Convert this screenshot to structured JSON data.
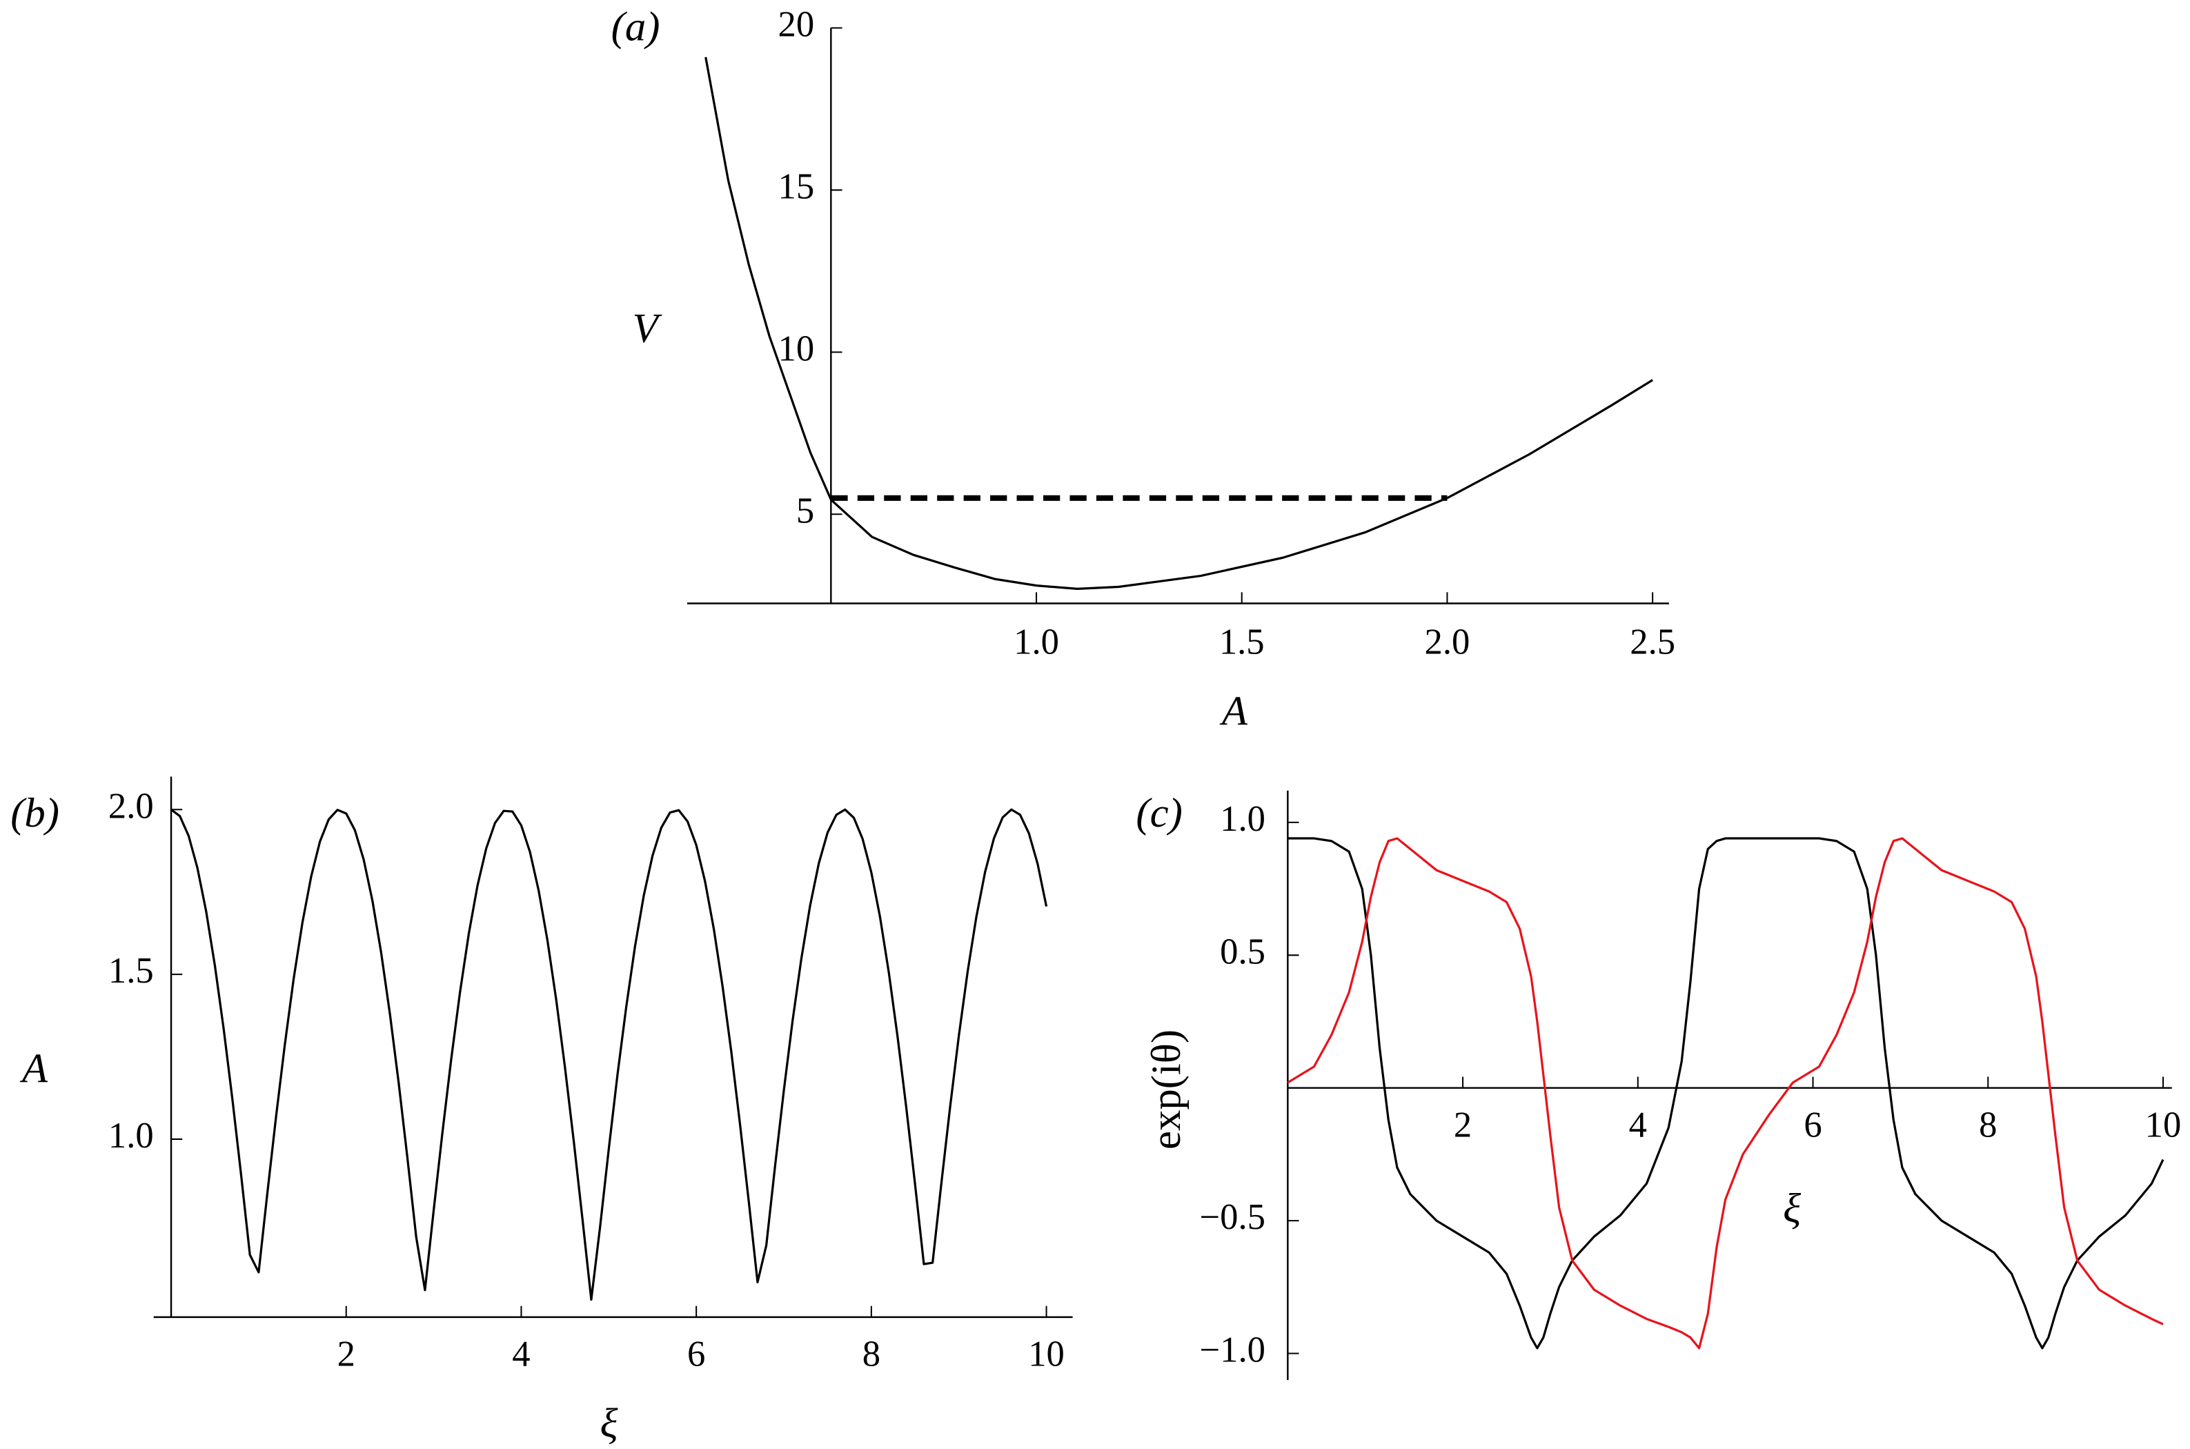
{
  "chart_data": [
    {
      "type": "line",
      "panel_label": "(a)",
      "xlabel": "A",
      "ylabel": "V",
      "xlim": [
        0.15,
        2.54
      ],
      "ylim": [
        2.25,
        20
      ],
      "axes_origin": [
        0.5,
        2.25
      ],
      "xticks": [
        {
          "value": 1.0,
          "label": "1.0"
        },
        {
          "value": 1.5,
          "label": "1.5"
        },
        {
          "value": 2.0,
          "label": "2.0"
        },
        {
          "value": 2.5,
          "label": "2.5"
        }
      ],
      "yticks": [
        5,
        10,
        15,
        20
      ],
      "x": [
        0.195,
        0.25,
        0.3,
        0.35,
        0.4,
        0.45,
        0.5,
        0.6,
        0.7,
        0.8,
        0.9,
        1.0,
        1.1,
        1.2,
        1.4,
        1.6,
        1.8,
        2.0,
        2.2,
        2.4,
        2.5
      ],
      "series": [
        {
          "color": "#000000",
          "values": [
            19.1,
            15.3,
            12.7,
            10.5,
            8.7,
            6.9,
            5.45,
            4.3,
            3.75,
            3.36,
            3.0,
            2.8,
            2.7,
            2.76,
            3.1,
            3.66,
            4.44,
            5.5,
            6.85,
            8.36,
            9.14
          ]
        },
        {
          "color": "#000000",
          "dashed": true,
          "x": [
            0.5,
            2.0
          ],
          "values": [
            5.5,
            5.5
          ]
        }
      ]
    },
    {
      "type": "line",
      "panel_label": "(b)",
      "xlabel": "ξ",
      "ylabel": "A",
      "xlim": [
        -0.2,
        10.3
      ],
      "ylim": [
        0.46,
        2.1
      ],
      "axes_origin": [
        0,
        0.46
      ],
      "xticks": [
        2,
        4,
        6,
        8,
        10
      ],
      "yticks": [
        {
          "value": 1.0,
          "label": "1.0"
        },
        {
          "value": 1.5,
          "label": "1.5"
        },
        {
          "value": 2.0,
          "label": "2.0"
        }
      ],
      "x": [
        0,
        0.1,
        0.2,
        0.3,
        0.4,
        0.5,
        0.6,
        0.7,
        0.8,
        0.9,
        1.0,
        1.1,
        1.2,
        1.3,
        1.4,
        1.5,
        1.6,
        1.7,
        1.8,
        1.9,
        2.0,
        2.1,
        2.2,
        2.3,
        2.4,
        2.5,
        2.6,
        2.7,
        2.8,
        2.9,
        3.0,
        3.1,
        3.2,
        3.3,
        3.4,
        3.5,
        3.6,
        3.7,
        3.8,
        3.9,
        4.0,
        4.1,
        4.2,
        4.3,
        4.4,
        4.5,
        4.6,
        4.7,
        4.8,
        4.9,
        5.0,
        5.1,
        5.2,
        5.3,
        5.4,
        5.5,
        5.6,
        5.7,
        5.8,
        5.9,
        6.0,
        6.1,
        6.2,
        6.3,
        6.4,
        6.5,
        6.6,
        6.7,
        6.8,
        6.9,
        7.0,
        7.1,
        7.2,
        7.3,
        7.4,
        7.5,
        7.6,
        7.7,
        7.8,
        7.9,
        8.0,
        8.1,
        8.2,
        8.3,
        8.4,
        8.5,
        8.6,
        8.7,
        8.8,
        8.9,
        9.0,
        9.1,
        9.2,
        9.3,
        9.4,
        9.5,
        9.6,
        9.7,
        9.8,
        9.9,
        10.0
      ],
      "series": [
        {
          "color": "#000000",
          "values": [
            2.0,
            1.98,
            1.92,
            1.823,
            1.691,
            1.526,
            1.335,
            1.121,
            0.89,
            0.649,
            0.596,
            0.838,
            1.071,
            1.289,
            1.487,
            1.657,
            1.797,
            1.903,
            1.97,
            1.999,
            1.988,
            1.937,
            1.848,
            1.723,
            1.565,
            1.379,
            1.17,
            0.942,
            0.703,
            0.542,
            0.785,
            1.021,
            1.243,
            1.445,
            1.622,
            1.769,
            1.882,
            1.959,
            1.996,
            1.994,
            1.952,
            1.871,
            1.753,
            1.602,
            1.422,
            1.217,
            0.994,
            0.756,
            0.513,
            0.732,
            0.97,
            1.196,
            1.402,
            1.585,
            1.739,
            1.86,
            1.945,
            1.991,
            1.998,
            1.964,
            1.892,
            1.782,
            1.638,
            1.464,
            1.265,
            1.044,
            0.81,
            0.566,
            0.678,
            0.918,
            1.147,
            1.359,
            1.547,
            1.708,
            1.837,
            1.93,
            1.984,
            2.0,
            1.975,
            1.911,
            1.809,
            1.673,
            1.505,
            1.31,
            1.094,
            0.862,
            0.621,
            0.625,
            0.866,
            1.098,
            1.314,
            1.508,
            1.675,
            1.811,
            1.912,
            1.976,
            2.0,
            1.984,
            1.928,
            1.835,
            1.706
          ]
        }
      ]
    },
    {
      "type": "line",
      "panel_label": "(c)",
      "xlabel": "ξ",
      "ylabel": "exp(iθ)",
      "xlim": [
        0,
        10.1
      ],
      "ylim": [
        -1.1,
        1.12
      ],
      "axes_origin": [
        0,
        0
      ],
      "xticks": [
        2,
        4,
        6,
        8,
        10
      ],
      "yticks": [
        {
          "value": -1.0,
          "label": "−1.0"
        },
        {
          "value": -0.5,
          "label": "−0.5"
        },
        {
          "value": 0.5,
          "label": "0.5"
        },
        {
          "value": 1.0,
          "label": "1.0"
        }
      ],
      "x": [
        0,
        0.3,
        0.5,
        0.7,
        0.85,
        0.95,
        1.05,
        1.15,
        1.25,
        1.4,
        1.7,
        2.0,
        2.3,
        2.5,
        2.65,
        2.78,
        2.85,
        2.92,
        3.0,
        3.1,
        3.25,
        3.5,
        3.8,
        4.1,
        4.35,
        4.5,
        4.6,
        4.7,
        4.8,
        4.9,
        5.0,
        5.2,
        5.5,
        5.77,
        6.07,
        6.27,
        6.47,
        6.62,
        6.72,
        6.82,
        6.92,
        7.02,
        7.17,
        7.47,
        7.77,
        8.07,
        8.27,
        8.42,
        8.55,
        8.62,
        8.69,
        8.77,
        8.87,
        9.02,
        9.27,
        9.57,
        9.87,
        10.0
      ],
      "series": [
        {
          "color": "#000000",
          "values": [
            0.94,
            0.94,
            0.93,
            0.89,
            0.75,
            0.5,
            0.15,
            -0.12,
            -0.3,
            -0.4,
            -0.5,
            -0.56,
            -0.62,
            -0.7,
            -0.82,
            -0.94,
            -0.98,
            -0.94,
            -0.85,
            -0.75,
            -0.65,
            -0.56,
            -0.48,
            -0.36,
            -0.15,
            0.1,
            0.4,
            0.75,
            0.9,
            0.93,
            0.94,
            0.94,
            0.94,
            0.94,
            0.94,
            0.93,
            0.89,
            0.75,
            0.5,
            0.15,
            -0.12,
            -0.3,
            -0.4,
            -0.5,
            -0.56,
            -0.62,
            -0.7,
            -0.82,
            -0.94,
            -0.98,
            -0.94,
            -0.85,
            -0.75,
            -0.65,
            -0.56,
            -0.48,
            -0.36,
            -0.27
          ]
        },
        {
          "color": "#e8131b",
          "values": [
            0.02,
            0.08,
            0.2,
            0.36,
            0.55,
            0.72,
            0.85,
            0.93,
            0.94,
            0.9,
            0.82,
            0.78,
            0.74,
            0.7,
            0.6,
            0.42,
            0.25,
            0.05,
            -0.18,
            -0.45,
            -0.65,
            -0.76,
            -0.82,
            -0.87,
            -0.9,
            -0.92,
            -0.94,
            -0.98,
            -0.85,
            -0.6,
            -0.42,
            -0.25,
            -0.1,
            0.02,
            0.08,
            0.2,
            0.36,
            0.55,
            0.72,
            0.85,
            0.93,
            0.94,
            0.9,
            0.82,
            0.78,
            0.74,
            0.7,
            0.6,
            0.42,
            0.25,
            0.05,
            -0.18,
            -0.45,
            -0.65,
            -0.76,
            -0.82,
            -0.87,
            -0.89
          ]
        }
      ]
    }
  ]
}
